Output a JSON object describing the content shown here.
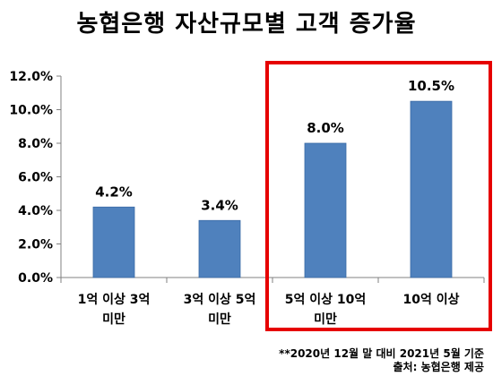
{
  "chart_data": {
    "type": "bar",
    "title": "농협은행 자산규모별 고객 증가율",
    "categories": [
      {
        "line1": "1억 이상 3억",
        "line2": "미만"
      },
      {
        "line1": "3억 이상 5억",
        "line2": "미만"
      },
      {
        "line1": "5억 이상 10억",
        "line2": "미만"
      },
      {
        "line1": "10억 이상",
        "line2": ""
      }
    ],
    "values": [
      4.2,
      3.4,
      8.0,
      10.5
    ],
    "data_labels": [
      "4.2%",
      "3.4%",
      "8.0%",
      "10.5%"
    ],
    "y_ticks": [
      "0.0%",
      "2.0%",
      "4.0%",
      "6.0%",
      "8.0%",
      "10.0%",
      "12.0%"
    ],
    "ylim": [
      0,
      12
    ],
    "y_step": 2,
    "xlabel": "",
    "ylabel": "",
    "grid": false,
    "legend": "none",
    "bar_color": "#4f81bd",
    "highlight": {
      "from_category": 2,
      "to_category": 3,
      "color": "#e60000"
    },
    "notes": [
      "**2020년 12월 말 대비 2021년 5월 기준",
      "출처: 농협은행 제공"
    ]
  }
}
